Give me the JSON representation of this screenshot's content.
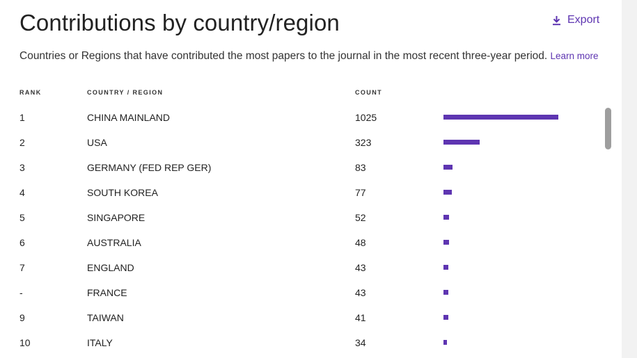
{
  "header": {
    "title": "Contributions by country/region",
    "export_label": "Export"
  },
  "description": {
    "text": "Countries or Regions that have contributed the most papers to the journal in the most recent three-year period.",
    "link_label": "Learn more"
  },
  "columns": {
    "rank": "RANK",
    "country": "COUNTRY / REGION",
    "count": "COUNT"
  },
  "bar_max_count": 1025,
  "rows": [
    {
      "rank": "1",
      "country": "CHINA MAINLAND",
      "count": 1025
    },
    {
      "rank": "2",
      "country": "USA",
      "count": 323
    },
    {
      "rank": "3",
      "country": "GERMANY (FED REP GER)",
      "count": 83
    },
    {
      "rank": "4",
      "country": "SOUTH KOREA",
      "count": 77
    },
    {
      "rank": "5",
      "country": "SINGAPORE",
      "count": 52
    },
    {
      "rank": "6",
      "country": "AUSTRALIA",
      "count": 48
    },
    {
      "rank": "7",
      "country": "ENGLAND",
      "count": 43
    },
    {
      "rank": "-",
      "country": "FRANCE",
      "count": 43
    },
    {
      "rank": "9",
      "country": "TAIWAN",
      "count": 41
    },
    {
      "rank": "10",
      "country": "ITALY",
      "count": 34
    }
  ],
  "colors": {
    "accent": "#5e35b1",
    "scrollbar": "#9e9e9e",
    "page_bg": "#f2f2f2"
  }
}
